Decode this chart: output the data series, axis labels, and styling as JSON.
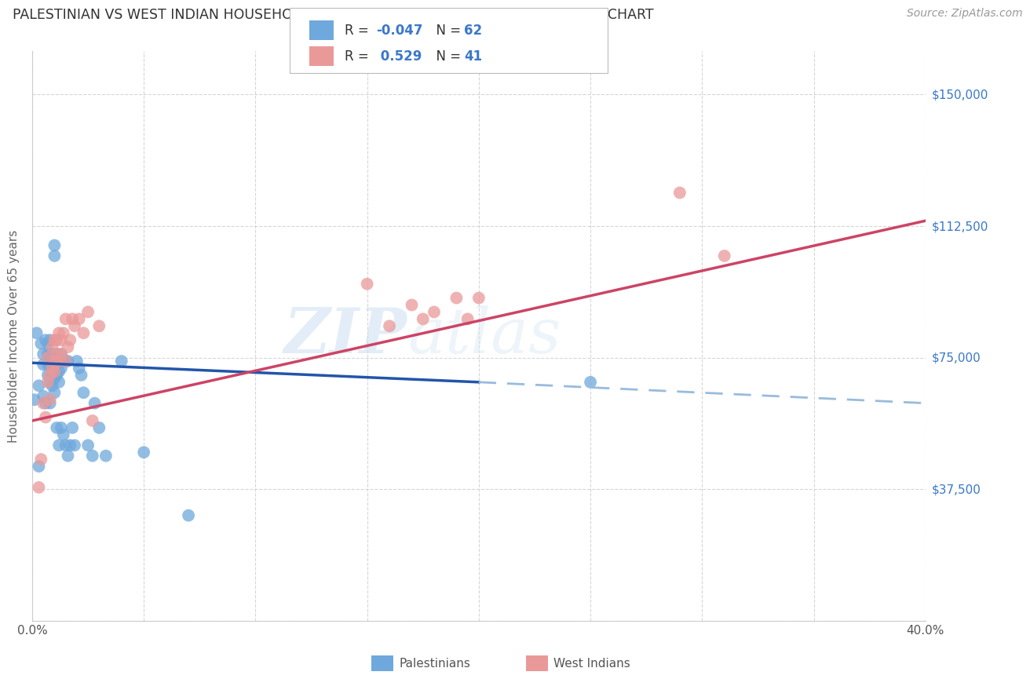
{
  "title": "PALESTINIAN VS WEST INDIAN HOUSEHOLDER INCOME OVER 65 YEARS CORRELATION CHART",
  "source": "Source: ZipAtlas.com",
  "ylabel": "Householder Income Over 65 years",
  "xlim": [
    0.0,
    0.4
  ],
  "ylim": [
    0,
    162500
  ],
  "xticks": [
    0.0,
    0.05,
    0.1,
    0.15,
    0.2,
    0.25,
    0.3,
    0.35,
    0.4
  ],
  "xticklabels": [
    "0.0%",
    "",
    "",
    "",
    "",
    "",
    "",
    "",
    "40.0%"
  ],
  "ytick_positions": [
    0,
    37500,
    75000,
    112500,
    150000
  ],
  "ytick_labels": [
    "",
    "$37,500",
    "$75,000",
    "$112,500",
    "$150,000"
  ],
  "blue_color": "#6fa8dc",
  "pink_color": "#ea9999",
  "trend_blue_solid_color": "#2255aa",
  "trend_pink_solid_color": "#cc4466",
  "trend_blue_dash_color": "#99bbdd",
  "watermark_zip": "ZIP",
  "watermark_atlas": "atlas",
  "palestinians_x": [
    0.001,
    0.002,
    0.003,
    0.003,
    0.004,
    0.005,
    0.005,
    0.005,
    0.006,
    0.006,
    0.007,
    0.007,
    0.007,
    0.007,
    0.008,
    0.008,
    0.008,
    0.008,
    0.008,
    0.009,
    0.009,
    0.009,
    0.009,
    0.01,
    0.01,
    0.01,
    0.01,
    0.01,
    0.01,
    0.011,
    0.011,
    0.011,
    0.011,
    0.012,
    0.012,
    0.012,
    0.012,
    0.013,
    0.013,
    0.013,
    0.014,
    0.014,
    0.015,
    0.015,
    0.016,
    0.016,
    0.017,
    0.018,
    0.019,
    0.02,
    0.021,
    0.022,
    0.023,
    0.025,
    0.027,
    0.028,
    0.03,
    0.033,
    0.04,
    0.05,
    0.07,
    0.25
  ],
  "palestinians_y": [
    63000,
    82000,
    67000,
    44000,
    79000,
    76000,
    73000,
    64000,
    62000,
    80000,
    79000,
    76000,
    73000,
    70000,
    80000,
    76000,
    73000,
    68000,
    62000,
    76000,
    73000,
    70000,
    67000,
    107000,
    104000,
    76000,
    73000,
    69000,
    65000,
    76000,
    73000,
    70000,
    55000,
    74000,
    71000,
    68000,
    50000,
    76000,
    72000,
    55000,
    74000,
    53000,
    74000,
    50000,
    74000,
    47000,
    50000,
    55000,
    50000,
    74000,
    72000,
    70000,
    65000,
    50000,
    47000,
    62000,
    55000,
    47000,
    74000,
    48000,
    30000,
    68000
  ],
  "west_indians_x": [
    0.003,
    0.004,
    0.005,
    0.006,
    0.007,
    0.007,
    0.008,
    0.008,
    0.009,
    0.009,
    0.01,
    0.01,
    0.01,
    0.011,
    0.011,
    0.012,
    0.012,
    0.013,
    0.013,
    0.014,
    0.015,
    0.015,
    0.016,
    0.017,
    0.018,
    0.019,
    0.021,
    0.023,
    0.025,
    0.027,
    0.03,
    0.15,
    0.16,
    0.17,
    0.175,
    0.18,
    0.19,
    0.195,
    0.2,
    0.29,
    0.31
  ],
  "west_indians_y": [
    38000,
    46000,
    62000,
    58000,
    68000,
    75000,
    70000,
    63000,
    72000,
    78000,
    74000,
    71000,
    80000,
    80000,
    76000,
    74000,
    82000,
    80000,
    76000,
    82000,
    86000,
    74000,
    78000,
    80000,
    86000,
    84000,
    86000,
    82000,
    88000,
    57000,
    84000,
    96000,
    84000,
    90000,
    86000,
    88000,
    92000,
    86000,
    92000,
    122000,
    104000
  ],
  "blue_trend_x0": 0.0,
  "blue_trend_y0": 73500,
  "blue_trend_x1": 0.2,
  "blue_trend_y1": 68000,
  "blue_trend_x2": 0.4,
  "blue_trend_y2": 62000,
  "pink_trend_x0": 0.0,
  "pink_trend_y0": 57000,
  "pink_trend_x1": 0.4,
  "pink_trend_y1": 114000
}
